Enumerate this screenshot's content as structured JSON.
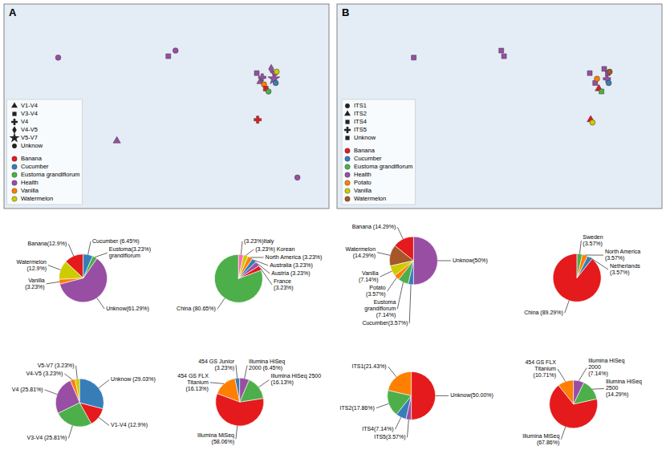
{
  "chart_data": [
    {
      "type": "scatter",
      "title": "A",
      "x": [
        -120,
        2,
        10,
        100,
        104,
        106,
        108,
        110,
        113,
        116,
        119,
        121,
        120,
        122,
        101,
        145,
        -55
      ],
      "y": [
        47,
        48,
        52,
        36,
        30,
        33,
        28,
        25,
        23,
        39,
        32,
        29,
        36,
        37,
        3,
        -38,
        -12
      ],
      "colors": [
        "#984ea3",
        "#984ea3",
        "#984ea3",
        "#984ea3",
        "#984ea3",
        "#984ea3",
        "#ff7f00",
        "#e41a1c",
        "#4daf4a",
        "#984ea3",
        "#984ea3",
        "#377eb8",
        "#984ea3",
        "#cccc00",
        "#e41a1c",
        "#984ea3",
        "#984ea3"
      ],
      "markers": [
        "circle",
        "square",
        "circle",
        "square",
        "triangle",
        "plus",
        "circle",
        "square",
        "circle",
        "diamond",
        "star",
        "circle",
        "circle",
        "circle",
        "plus",
        "circle",
        "triangle"
      ],
      "xlim": [
        -180,
        180
      ],
      "ylim": [
        -60,
        85
      ],
      "tick_labels": false,
      "legend": "lower left",
      "series": [
        {
          "name": "Banana",
          "color": "#e41a1c"
        },
        {
          "name": "Cucumber",
          "color": "#377eb8"
        },
        {
          "name": "Eustoma grandiflorum",
          "color": "#4daf4a"
        },
        {
          "name": "Health",
          "color": "#984ea3"
        },
        {
          "name": "Vanilla",
          "color": "#ff7f00"
        },
        {
          "name": "Watermelon",
          "color": "#cccc00"
        }
      ],
      "marker_legend": [
        {
          "name": "V1-V4",
          "marker": "triangle"
        },
        {
          "name": "V3-V4",
          "marker": "square"
        },
        {
          "name": "V4",
          "marker": "plus"
        },
        {
          "name": "V4-V5",
          "marker": "diamond"
        },
        {
          "name": "V5-V7",
          "marker": "star"
        },
        {
          "name": "Unknow",
          "marker": "circle"
        }
      ]
    },
    {
      "type": "pie",
      "values": [
        12.9,
        12.9,
        3.23,
        61.29,
        3.23,
        6.45
      ],
      "colors": [
        "#e41a1c",
        "#cccc00",
        "#ff7f00",
        "#984ea3",
        "#4daf4a",
        "#377eb8"
      ],
      "labels": [
        "Banana(12.9%)",
        "Watermelon\n(12.9%)",
        "Vanilla\n(3.23%)",
        "Unknow(61.29%)",
        "Eustoma(3.23%)\ngrandiflorum",
        "Cucumber (6.45%)"
      ]
    },
    {
      "type": "pie",
      "values": [
        80.65,
        3.23,
        3.23,
        3.23,
        3.23,
        3.23,
        3.23
      ],
      "colors": [
        "#4daf4a",
        "#e41a1c",
        "#984ea3",
        "#377eb8",
        "#ff7f00",
        "#cccc00",
        "#ff69b4"
      ],
      "labels": [
        "China  (80.65%)",
        "France\n(3.23%)",
        "Austria  (3.23%)",
        "Australia (3.23%)",
        "North America  (3.23%)",
        "(3.23%) Korean",
        "(3.23%)Italy"
      ]
    },
    {
      "type": "pie",
      "values": [
        3.23,
        3.23,
        25.81,
        25.81,
        12.9,
        29.03
      ],
      "colors": [
        "#cccc00",
        "#ff7f00",
        "#984ea3",
        "#4daf4a",
        "#e41a1c",
        "#377eb8"
      ],
      "labels": [
        "V5-V7 (3.23%)",
        "V4-V5 (3.23%)",
        "V4 (25.81%)",
        "V3-V4  (25.81%)",
        "V1-V4 (12.9%)",
        "Unknow (29.03%)"
      ]
    },
    {
      "type": "pie",
      "values": [
        3.23,
        16.13,
        58.06,
        16.13,
        6.45
      ],
      "colors": [
        "#377eb8",
        "#ff7f00",
        "#e41a1c",
        "#4daf4a",
        "#984ea3"
      ],
      "labels": [
        "454 GS Junior\n(3.23%)",
        "454 GS FLX\nTitanium\n(16.13%)",
        "Illumina MiSeq\n(58.06%)",
        "Illumina HiSeq 2500\n(16.13%)",
        "Illumina HiSeq\n2000 (6.45%)"
      ]
    },
    {
      "type": "scatter",
      "title": "B",
      "x": [
        -95,
        2,
        5,
        100,
        106,
        108,
        110,
        113,
        116,
        119,
        121,
        120,
        122,
        101,
        103
      ],
      "y": [
        47,
        52,
        48,
        36,
        29,
        32,
        25,
        23,
        39,
        32,
        29,
        36,
        37,
        3,
        1
      ],
      "colors": [
        "#984ea3",
        "#984ea3",
        "#984ea3",
        "#984ea3",
        "#984ea3",
        "#ff7f00",
        "#e41a1c",
        "#4daf4a",
        "#984ea3",
        "#984ea3",
        "#377eb8",
        "#984ea3",
        "#a65628",
        "#e41a1c",
        "#cccc00"
      ],
      "markers": [
        "square",
        "square",
        "square",
        "square",
        "square",
        "circle",
        "triangle",
        "square",
        "square",
        "plus",
        "circle",
        "square",
        "circle",
        "triangle",
        "circle"
      ],
      "xlim": [
        -180,
        180
      ],
      "ylim": [
        -60,
        85
      ],
      "tick_labels": false,
      "legend": "lower left",
      "series": [
        {
          "name": "Banana",
          "color": "#e41a1c"
        },
        {
          "name": "Cucumber",
          "color": "#377eb8"
        },
        {
          "name": "Eustoma grandiflorum",
          "color": "#4daf4a"
        },
        {
          "name": "Health",
          "color": "#984ea3"
        },
        {
          "name": "Potato",
          "color": "#ff7f00"
        },
        {
          "name": "Vanilla",
          "color": "#cccc00"
        },
        {
          "name": "Watermelon",
          "color": "#a65628"
        }
      ],
      "marker_legend": [
        {
          "name": "ITS1",
          "marker": "circle"
        },
        {
          "name": "ITS2",
          "marker": "triangle"
        },
        {
          "name": "ITS4",
          "marker": "square"
        },
        {
          "name": "ITS5",
          "marker": "plus"
        },
        {
          "name": "Unknow",
          "marker": "square"
        }
      ]
    },
    {
      "type": "pie",
      "values": [
        14.29,
        14.29,
        7.14,
        3.57,
        7.14,
        3.57,
        50.0
      ],
      "colors": [
        "#e41a1c",
        "#a65628",
        "#cccc00",
        "#ff7f00",
        "#4daf4a",
        "#377eb8",
        "#984ea3"
      ],
      "labels": [
        "Banana (14.29%)",
        "Watermelon\n(14.29%)",
        "Vanilla\n(7.14%)",
        "Potato\n(3.57%)",
        "Eustoma\ngrandiflorum\n(7.14%)",
        "Cucumber(3.57%)",
        "Unknow(50%)"
      ]
    },
    {
      "type": "pie",
      "values": [
        89.29,
        3.57,
        3.57,
        3.57
      ],
      "colors": [
        "#e41a1c",
        "#377eb8",
        "#ff7f00",
        "#4daf4a"
      ],
      "labels": [
        "China (89.29%)",
        "Netherlands\n(3.57%)",
        "North America\n(3.57%)",
        "Sweden\n(3.57%)"
      ]
    },
    {
      "type": "pie",
      "values": [
        21.43,
        17.86,
        7.14,
        3.57,
        50.0
      ],
      "colors": [
        "#ff7f00",
        "#4daf4a",
        "#377eb8",
        "#984ea3",
        "#e41a1c"
      ],
      "labels": [
        "ITS1(21.43%)",
        "ITS2(17.86%)",
        "ITS4(7.14%)",
        "ITS5(3.57%)",
        "Unknow(50.00%)"
      ]
    },
    {
      "type": "pie",
      "values": [
        10.71,
        67.86,
        14.29,
        7.14
      ],
      "colors": [
        "#ff7f00",
        "#e41a1c",
        "#4daf4a",
        "#984ea3"
      ],
      "labels": [
        "454 GS FLX\nTitanium\n(10.71%)",
        "Illumina MiSeq\n(67.86%)",
        "Illumina HiSeq\n2500\n(14.29%)",
        "Illumina HiSeq\n2000\n(7.14%)"
      ]
    }
  ]
}
